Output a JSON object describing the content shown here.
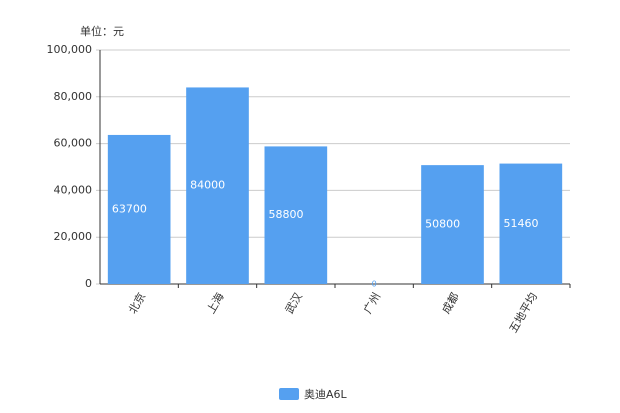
{
  "chart_data": {
    "type": "bar",
    "y_axis_label": "单位：元",
    "categories": [
      "北京",
      "上海",
      "武汉",
      "广州",
      "成都",
      "五地平均"
    ],
    "series": [
      {
        "name": "奥迪A6L",
        "color": "#55a0f0",
        "values": [
          63700,
          84000,
          58800,
          0,
          50800,
          51460
        ]
      }
    ],
    "ylim": [
      0,
      100000
    ],
    "yticks": [
      0,
      {
        "value": 20000,
        "label": "20,000"
      },
      {
        "value": 40000,
        "label": "40,000"
      },
      {
        "value": 60000,
        "label": "60,000"
      },
      {
        "value": 80000,
        "label": "80,000"
      },
      {
        "value": 100000,
        "label": "100,000"
      }
    ],
    "grid": true,
    "legend": "bottom"
  }
}
